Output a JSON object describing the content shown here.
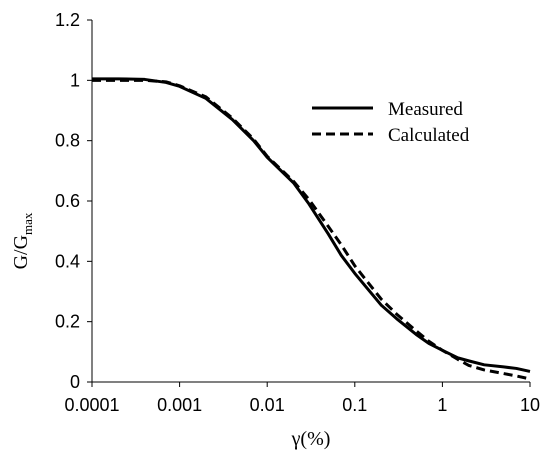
{
  "chart_data": {
    "type": "line",
    "title": "",
    "xlabel": "γ(%)",
    "ylabel": {
      "main": "G/G",
      "subscript": "max"
    },
    "x_scale": "log",
    "xlim": [
      0.0001,
      10
    ],
    "ylim": [
      0,
      1.2
    ],
    "grid": false,
    "legend_position": "top-right",
    "x_ticks": [
      {
        "value": 0.0001,
        "label": "0.0001"
      },
      {
        "value": 0.001,
        "label": "0.001"
      },
      {
        "value": 0.01,
        "label": "0.01"
      },
      {
        "value": 0.1,
        "label": "0.1"
      },
      {
        "value": 1,
        "label": "1"
      },
      {
        "value": 10,
        "label": "10"
      }
    ],
    "y_ticks": [
      {
        "value": 0,
        "label": "0"
      },
      {
        "value": 0.2,
        "label": "0.2"
      },
      {
        "value": 0.4,
        "label": "0.4"
      },
      {
        "value": 0.6,
        "label": "0.6"
      },
      {
        "value": 0.8,
        "label": "0.8"
      },
      {
        "value": 1,
        "label": "1"
      },
      {
        "value": 1.2,
        "label": "1.2"
      }
    ],
    "series": [
      {
        "name": "Measured",
        "style": "solid",
        "color": "#000000",
        "points": [
          [
            0.0001,
            1.005
          ],
          [
            0.0002,
            1.005
          ],
          [
            0.0004,
            1.003
          ],
          [
            0.0007,
            0.993
          ],
          [
            0.001,
            0.98
          ],
          [
            0.002,
            0.94
          ],
          [
            0.004,
            0.87
          ],
          [
            0.007,
            0.8
          ],
          [
            0.01,
            0.745
          ],
          [
            0.02,
            0.66
          ],
          [
            0.03,
            0.59
          ],
          [
            0.05,
            0.49
          ],
          [
            0.07,
            0.42
          ],
          [
            0.1,
            0.36
          ],
          [
            0.2,
            0.255
          ],
          [
            0.3,
            0.21
          ],
          [
            0.5,
            0.158
          ],
          [
            0.7,
            0.128
          ],
          [
            1,
            0.105
          ],
          [
            1.5,
            0.08
          ],
          [
            2,
            0.07
          ],
          [
            3,
            0.057
          ],
          [
            5,
            0.05
          ],
          [
            7,
            0.045
          ],
          [
            10,
            0.035
          ]
        ]
      },
      {
        "name": "Calculated",
        "style": "dashed",
        "color": "#000000",
        "points": [
          [
            0.0001,
            1.0
          ],
          [
            0.0002,
            1.0
          ],
          [
            0.0004,
            1.0
          ],
          [
            0.0007,
            0.995
          ],
          [
            0.001,
            0.982
          ],
          [
            0.002,
            0.945
          ],
          [
            0.004,
            0.875
          ],
          [
            0.007,
            0.805
          ],
          [
            0.01,
            0.748
          ],
          [
            0.02,
            0.665
          ],
          [
            0.03,
            0.605
          ],
          [
            0.05,
            0.515
          ],
          [
            0.07,
            0.455
          ],
          [
            0.1,
            0.385
          ],
          [
            0.2,
            0.275
          ],
          [
            0.3,
            0.225
          ],
          [
            0.5,
            0.17
          ],
          [
            0.7,
            0.135
          ],
          [
            1,
            0.105
          ],
          [
            1.5,
            0.075
          ],
          [
            2,
            0.055
          ],
          [
            3,
            0.04
          ],
          [
            5,
            0.028
          ],
          [
            7,
            0.02
          ],
          [
            10,
            0.01
          ]
        ]
      }
    ]
  }
}
